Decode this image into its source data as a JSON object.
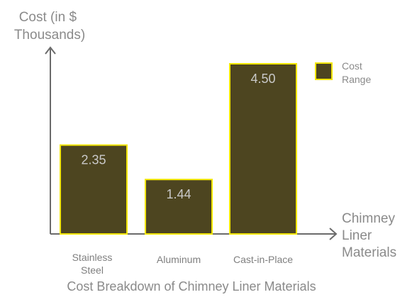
{
  "chart_data": {
    "type": "bar",
    "title": "Cost Breakdown of Chimney Liner Materials",
    "ylabel": "Cost (in $ Thousands)",
    "xlabel": "Chimney Liner Materials",
    "categories": [
      "Stainless Steel",
      "Aluminum",
      "Cast-in-Place"
    ],
    "series": [
      {
        "name": "Cost Range",
        "values": [
          2.35,
          1.44,
          4.5
        ]
      }
    ],
    "value_labels": [
      "2.35",
      "1.44",
      "4.50"
    ],
    "ylim": [
      0,
      5
    ],
    "grid": false,
    "legend_position": "top-right",
    "colors": {
      "bar_fill": "#4d4520",
      "bar_stroke": "#f2e600",
      "axis": "#6b6b6b",
      "text": "#8a8a8a",
      "bar_text": "#c9c9c9"
    }
  }
}
